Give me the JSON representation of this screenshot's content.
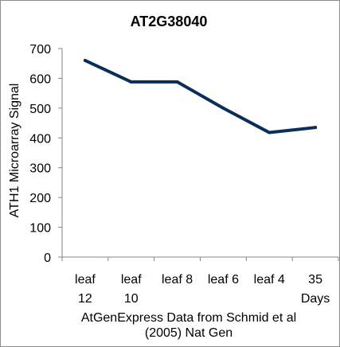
{
  "chart_data": {
    "type": "line",
    "title": "AT2G38040",
    "ylabel": "ATH1 Microarray Signal",
    "xlabel": [
      "AtGenExpress Data from Schmid et al",
      "(2005) Nat Gen"
    ],
    "categories": [
      [
        "leaf",
        "12"
      ],
      [
        "leaf",
        "10"
      ],
      [
        "leaf 8"
      ],
      [
        "leaf 6"
      ],
      [
        "leaf 4"
      ],
      [
        "35",
        "Days"
      ]
    ],
    "series": [
      {
        "values": [
          660,
          588,
          588,
          500,
          418,
          435
        ]
      }
    ],
    "ylim": [
      0,
      700
    ],
    "yticks": [
      0,
      100,
      200,
      300,
      400,
      500,
      600,
      700
    ],
    "grid": false,
    "legend": "none",
    "line_color": "#0b2e59"
  }
}
